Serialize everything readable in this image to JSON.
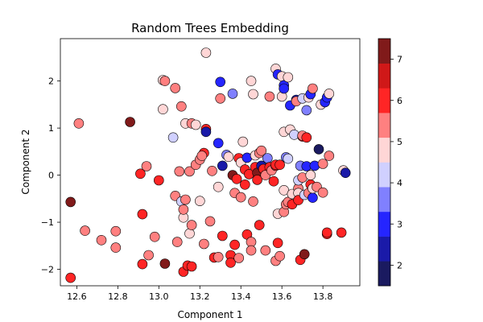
{
  "chart_data": {
    "type": "scatter",
    "title": "Random Trees Embedding",
    "xlabel": "Component 1",
    "ylabel": "Component 2",
    "xlim": [
      12.52,
      13.98
    ],
    "ylim": [
      -2.35,
      2.9
    ],
    "xticks": [
      12.6,
      12.8,
      13.0,
      13.2,
      13.4,
      13.6,
      13.8
    ],
    "yticks": [
      -2,
      -1,
      0,
      1,
      2
    ],
    "grid": false,
    "colorbar": {
      "range": [
        1.5,
        7.5
      ],
      "ticks": [
        2,
        3,
        4,
        5,
        6,
        7
      ],
      "bands": [
        "#1a1a60",
        "#1a1aa8",
        "#2525ff",
        "#8080ff",
        "#d0d0ff",
        "#ffd6d6",
        "#ff8080",
        "#ff2525",
        "#d01818",
        "#801a1a"
      ]
    },
    "points": [
      {
        "x": 12.57,
        "y": -0.57,
        "c": 7.2
      },
      {
        "x": 12.57,
        "y": -2.18,
        "c": 6.3
      },
      {
        "x": 12.61,
        "y": 1.1,
        "c": 5.1
      },
      {
        "x": 12.64,
        "y": -1.18,
        "c": 5.1
      },
      {
        "x": 12.86,
        "y": 1.13,
        "c": 7.2
      },
      {
        "x": 12.72,
        "y": -1.38,
        "c": 5.1
      },
      {
        "x": 12.79,
        "y": -1.19,
        "c": 5.1
      },
      {
        "x": 12.79,
        "y": -1.54,
        "c": 5.1
      },
      {
        "x": 12.91,
        "y": 0.03,
        "c": 6.3
      },
      {
        "x": 12.94,
        "y": 0.19,
        "c": 5.6
      },
      {
        "x": 12.92,
        "y": -0.83,
        "c": 6.3
      },
      {
        "x": 12.92,
        "y": -1.89,
        "c": 6.3
      },
      {
        "x": 12.95,
        "y": -1.7,
        "c": 5.1
      },
      {
        "x": 12.98,
        "y": -1.31,
        "c": 5.6
      },
      {
        "x": 13.0,
        "y": -0.11,
        "c": 6.3
      },
      {
        "x": 13.03,
        "y": -1.88,
        "c": 7.2
      },
      {
        "x": 13.02,
        "y": 2.02,
        "c": 4.5
      },
      {
        "x": 13.03,
        "y": 2.0,
        "c": 5.6
      },
      {
        "x": 13.02,
        "y": 1.4,
        "c": 4.5
      },
      {
        "x": 13.08,
        "y": 1.85,
        "c": 5.1
      },
      {
        "x": 13.07,
        "y": 0.8,
        "c": 4.0
      },
      {
        "x": 13.08,
        "y": -0.44,
        "c": 5.1
      },
      {
        "x": 13.09,
        "y": -1.42,
        "c": 5.1
      },
      {
        "x": 13.1,
        "y": 0.08,
        "c": 5.6
      },
      {
        "x": 13.11,
        "y": 1.46,
        "c": 5.6
      },
      {
        "x": 13.11,
        "y": -0.56,
        "c": 4.0
      },
      {
        "x": 13.12,
        "y": -0.9,
        "c": 4.5
      },
      {
        "x": 13.12,
        "y": -0.73,
        "c": 5.1
      },
      {
        "x": 13.12,
        "y": -2.05,
        "c": 6.3
      },
      {
        "x": 13.13,
        "y": 1.1,
        "c": 4.5
      },
      {
        "x": 13.14,
        "y": -1.92,
        "c": 6.3
      },
      {
        "x": 13.13,
        "y": -0.52,
        "c": 5.6
      },
      {
        "x": 13.15,
        "y": -1.24,
        "c": 4.5
      },
      {
        "x": 13.16,
        "y": -1.94,
        "c": 6.3
      },
      {
        "x": 13.15,
        "y": 0.08,
        "c": 5.6
      },
      {
        "x": 13.16,
        "y": 1.1,
        "c": 5.1
      },
      {
        "x": 13.16,
        "y": -1.06,
        "c": 5.1
      },
      {
        "x": 13.18,
        "y": 1.07,
        "c": 4.5
      },
      {
        "x": 13.18,
        "y": 0.22,
        "c": 5.6
      },
      {
        "x": 13.2,
        "y": 0.33,
        "c": 5.6
      },
      {
        "x": 13.2,
        "y": -0.55,
        "c": 4.5
      },
      {
        "x": 13.22,
        "y": 0.47,
        "c": 6.3
      },
      {
        "x": 13.21,
        "y": 0.41,
        "c": 5.6
      },
      {
        "x": 13.23,
        "y": 0.98,
        "c": 6.3
      },
      {
        "x": 13.23,
        "y": 0.92,
        "c": 2.5
      },
      {
        "x": 13.23,
        "y": 2.6,
        "c": 4.5
      },
      {
        "x": 13.22,
        "y": -1.46,
        "c": 5.6
      },
      {
        "x": 13.25,
        "y": -0.98,
        "c": 5.1
      },
      {
        "x": 13.26,
        "y": 0.09,
        "c": 5.1
      },
      {
        "x": 13.27,
        "y": -1.75,
        "c": 6.3
      },
      {
        "x": 13.29,
        "y": -1.74,
        "c": 5.1
      },
      {
        "x": 13.29,
        "y": 0.68,
        "c": 3.0
      },
      {
        "x": 13.29,
        "y": -0.25,
        "c": 4.5
      },
      {
        "x": 13.3,
        "y": 1.63,
        "c": 5.1
      },
      {
        "x": 13.3,
        "y": 1.98,
        "c": 3.0
      },
      {
        "x": 13.31,
        "y": 0.2,
        "c": 2.5
      },
      {
        "x": 13.31,
        "y": -1.29,
        "c": 6.3
      },
      {
        "x": 13.33,
        "y": 0.43,
        "c": 3.5
      },
      {
        "x": 13.34,
        "y": 0.39,
        "c": 4.5
      },
      {
        "x": 13.35,
        "y": -1.7,
        "c": 6.3
      },
      {
        "x": 13.35,
        "y": -1.86,
        "c": 6.3
      },
      {
        "x": 13.36,
        "y": 1.73,
        "c": 3.5
      },
      {
        "x": 13.36,
        "y": 0.0,
        "c": 7.2
      },
      {
        "x": 13.37,
        "y": -0.38,
        "c": 5.6
      },
      {
        "x": 13.37,
        "y": -1.48,
        "c": 6.3
      },
      {
        "x": 13.38,
        "y": -0.08,
        "c": 6.3
      },
      {
        "x": 13.39,
        "y": 0.36,
        "c": 6.3
      },
      {
        "x": 13.39,
        "y": -1.76,
        "c": 5.6
      },
      {
        "x": 13.4,
        "y": -0.47,
        "c": 5.1
      },
      {
        "x": 13.4,
        "y": 0.27,
        "c": 4.5
      },
      {
        "x": 13.41,
        "y": 0.71,
        "c": 4.5
      },
      {
        "x": 13.42,
        "y": 0.12,
        "c": 6.3
      },
      {
        "x": 13.42,
        "y": -0.2,
        "c": 6.3
      },
      {
        "x": 13.43,
        "y": 0.37,
        "c": 3.0
      },
      {
        "x": 13.43,
        "y": -1.26,
        "c": 6.3
      },
      {
        "x": 13.44,
        "y": 0.02,
        "c": 6.3
      },
      {
        "x": 13.45,
        "y": -1.42,
        "c": 5.6
      },
      {
        "x": 13.45,
        "y": -1.6,
        "c": 5.1
      },
      {
        "x": 13.45,
        "y": 2.0,
        "c": 4.5
      },
      {
        "x": 13.46,
        "y": 1.72,
        "c": 4.5
      },
      {
        "x": 13.46,
        "y": -0.56,
        "c": 5.1
      },
      {
        "x": 13.47,
        "y": 0.17,
        "c": 6.3
      },
      {
        "x": 13.47,
        "y": 0.42,
        "c": 4.5
      },
      {
        "x": 13.48,
        "y": 0.05,
        "c": 7.2
      },
      {
        "x": 13.48,
        "y": -0.1,
        "c": 6.3
      },
      {
        "x": 13.49,
        "y": 0.47,
        "c": 5.1
      },
      {
        "x": 13.49,
        "y": -1.06,
        "c": 6.3
      },
      {
        "x": 13.5,
        "y": 0.52,
        "c": 5.6
      },
      {
        "x": 13.5,
        "y": 0.2,
        "c": 2.5
      },
      {
        "x": 13.51,
        "y": 0.13,
        "c": 6.3
      },
      {
        "x": 13.52,
        "y": 0.0,
        "c": 5.6
      },
      {
        "x": 13.52,
        "y": -1.6,
        "c": 5.1
      },
      {
        "x": 13.53,
        "y": 0.36,
        "c": 3.5
      },
      {
        "x": 13.54,
        "y": 1.67,
        "c": 5.6
      },
      {
        "x": 13.54,
        "y": 0.17,
        "c": 6.3
      },
      {
        "x": 13.55,
        "y": 0.1,
        "c": 5.6
      },
      {
        "x": 13.56,
        "y": -0.13,
        "c": 6.3
      },
      {
        "x": 13.57,
        "y": 0.2,
        "c": 6.3
      },
      {
        "x": 13.57,
        "y": 0.22,
        "c": 6.3
      },
      {
        "x": 13.57,
        "y": -1.82,
        "c": 5.6
      },
      {
        "x": 13.58,
        "y": -1.44,
        "c": 6.3
      },
      {
        "x": 13.58,
        "y": -0.82,
        "c": 4.5
      },
      {
        "x": 13.57,
        "y": 2.26,
        "c": 4.5
      },
      {
        "x": 13.58,
        "y": 2.14,
        "c": 3.0
      },
      {
        "x": 13.59,
        "y": -1.72,
        "c": 5.6
      },
      {
        "x": 13.59,
        "y": 0.22,
        "c": 6.3
      },
      {
        "x": 13.6,
        "y": 2.1,
        "c": 4.5
      },
      {
        "x": 13.6,
        "y": 1.67,
        "c": 4.5
      },
      {
        "x": 13.61,
        "y": 0.92,
        "c": 4.5
      },
      {
        "x": 13.61,
        "y": 1.91,
        "c": 3.0
      },
      {
        "x": 13.61,
        "y": 1.84,
        "c": 3.0
      },
      {
        "x": 13.61,
        "y": -0.32,
        "c": 4.5
      },
      {
        "x": 13.61,
        "y": -0.78,
        "c": 5.1
      },
      {
        "x": 13.62,
        "y": -0.62,
        "c": 5.1
      },
      {
        "x": 13.62,
        "y": 0.38,
        "c": 3.5
      },
      {
        "x": 13.63,
        "y": 2.08,
        "c": 4.5
      },
      {
        "x": 13.63,
        "y": 0.35,
        "c": 4.0
      },
      {
        "x": 13.63,
        "y": -0.57,
        "c": 5.6
      },
      {
        "x": 13.64,
        "y": 1.48,
        "c": 3.0
      },
      {
        "x": 13.64,
        "y": 0.97,
        "c": 4.5
      },
      {
        "x": 13.65,
        "y": -0.4,
        "c": 4.5
      },
      {
        "x": 13.65,
        "y": -0.62,
        "c": 6.3
      },
      {
        "x": 13.66,
        "y": 0.86,
        "c": 4.0
      },
      {
        "x": 13.67,
        "y": 1.6,
        "c": 2.5
      },
      {
        "x": 13.67,
        "y": 1.57,
        "c": 5.1
      },
      {
        "x": 13.68,
        "y": -0.28,
        "c": 5.1
      },
      {
        "x": 13.68,
        "y": -0.11,
        "c": 4.0
      },
      {
        "x": 13.68,
        "y": -0.38,
        "c": 4.5
      },
      {
        "x": 13.68,
        "y": -0.53,
        "c": 6.3
      },
      {
        "x": 13.69,
        "y": -1.8,
        "c": 6.3
      },
      {
        "x": 13.69,
        "y": 0.2,
        "c": 3.5
      },
      {
        "x": 13.7,
        "y": 0.82,
        "c": 6.3
      },
      {
        "x": 13.7,
        "y": 1.63,
        "c": 4.0
      },
      {
        "x": 13.7,
        "y": 0.84,
        "c": 5.6
      },
      {
        "x": 13.7,
        "y": -0.05,
        "c": 5.6
      },
      {
        "x": 13.71,
        "y": -0.42,
        "c": 4.0
      },
      {
        "x": 13.71,
        "y": -1.68,
        "c": 7.2
      },
      {
        "x": 13.72,
        "y": 0.19,
        "c": 3.0
      },
      {
        "x": 13.72,
        "y": 0.8,
        "c": 6.3
      },
      {
        "x": 13.72,
        "y": 1.38,
        "c": 3.5
      },
      {
        "x": 13.73,
        "y": 1.65,
        "c": 4.5
      },
      {
        "x": 13.73,
        "y": -0.38,
        "c": 5.1
      },
      {
        "x": 13.74,
        "y": 0.0,
        "c": 4.5
      },
      {
        "x": 13.74,
        "y": -0.2,
        "c": 6.3
      },
      {
        "x": 13.74,
        "y": 1.72,
        "c": 3.0
      },
      {
        "x": 13.75,
        "y": -0.48,
        "c": 3.0
      },
      {
        "x": 13.75,
        "y": -0.28,
        "c": 4.5
      },
      {
        "x": 13.75,
        "y": 1.84,
        "c": 5.1
      },
      {
        "x": 13.76,
        "y": 0.2,
        "c": 3.0
      },
      {
        "x": 13.77,
        "y": -0.25,
        "c": 5.1
      },
      {
        "x": 13.78,
        "y": 0.55,
        "c": 2.0
      },
      {
        "x": 13.79,
        "y": 1.5,
        "c": 4.5
      },
      {
        "x": 13.8,
        "y": 0.24,
        "c": 5.6
      },
      {
        "x": 13.8,
        "y": -0.37,
        "c": 5.1
      },
      {
        "x": 13.81,
        "y": 1.55,
        "c": 3.0
      },
      {
        "x": 13.82,
        "y": 1.65,
        "c": 3.0
      },
      {
        "x": 13.82,
        "y": -1.25,
        "c": 6.3
      },
      {
        "x": 13.83,
        "y": 0.41,
        "c": 5.1
      },
      {
        "x": 13.83,
        "y": 1.73,
        "c": 4.5
      },
      {
        "x": 13.82,
        "y": -1.22,
        "c": 6.3
      },
      {
        "x": 13.89,
        "y": -1.22,
        "c": 6.3
      },
      {
        "x": 13.9,
        "y": 0.1,
        "c": 4.5
      },
      {
        "x": 13.91,
        "y": 0.05,
        "c": 2.5
      }
    ]
  }
}
